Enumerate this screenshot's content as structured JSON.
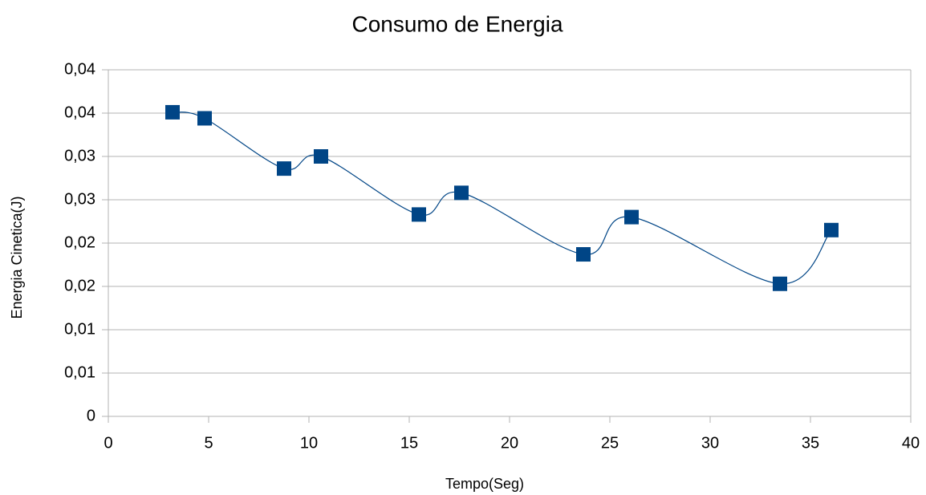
{
  "chart_data": {
    "type": "scatter",
    "title": "Consumo de Energia",
    "x_label": "Tempo(Seg)",
    "y_label": "Energia Cinetica(J)",
    "series": [
      {
        "name": "Energia Cinetica(J)",
        "color": "#004586",
        "x": [
          3.2,
          4.8,
          8.76,
          10.6,
          15.48,
          17.6,
          23.68,
          26.08,
          33.48,
          36.04
        ],
        "values": [
          0.0351,
          0.0344,
          0.0286,
          0.03,
          0.0233,
          0.0258,
          0.0187,
          0.023,
          0.0153,
          0.0215
        ]
      }
    ],
    "smooth_line": true,
    "xlim": [
      0,
      40
    ],
    "xticks": [
      0,
      5,
      10,
      15,
      20,
      25,
      30,
      35,
      40
    ],
    "ylim": [
      0,
      0.04
    ],
    "yticks": [
      0,
      {
        "value": 0.005,
        "label": "0,01"
      },
      {
        "value": 0.01,
        "label": "0,01"
      },
      {
        "value": 0.015,
        "label": "0,02"
      },
      {
        "value": 0.02,
        "label": "0,02"
      },
      {
        "value": 0.025,
        "label": "0,03"
      },
      {
        "value": 0.03,
        "label": "0,03"
      },
      {
        "value": 0.035,
        "label": "0,04"
      },
      {
        "value": 0.04,
        "label": "0,04"
      }
    ],
    "grid": true
  }
}
